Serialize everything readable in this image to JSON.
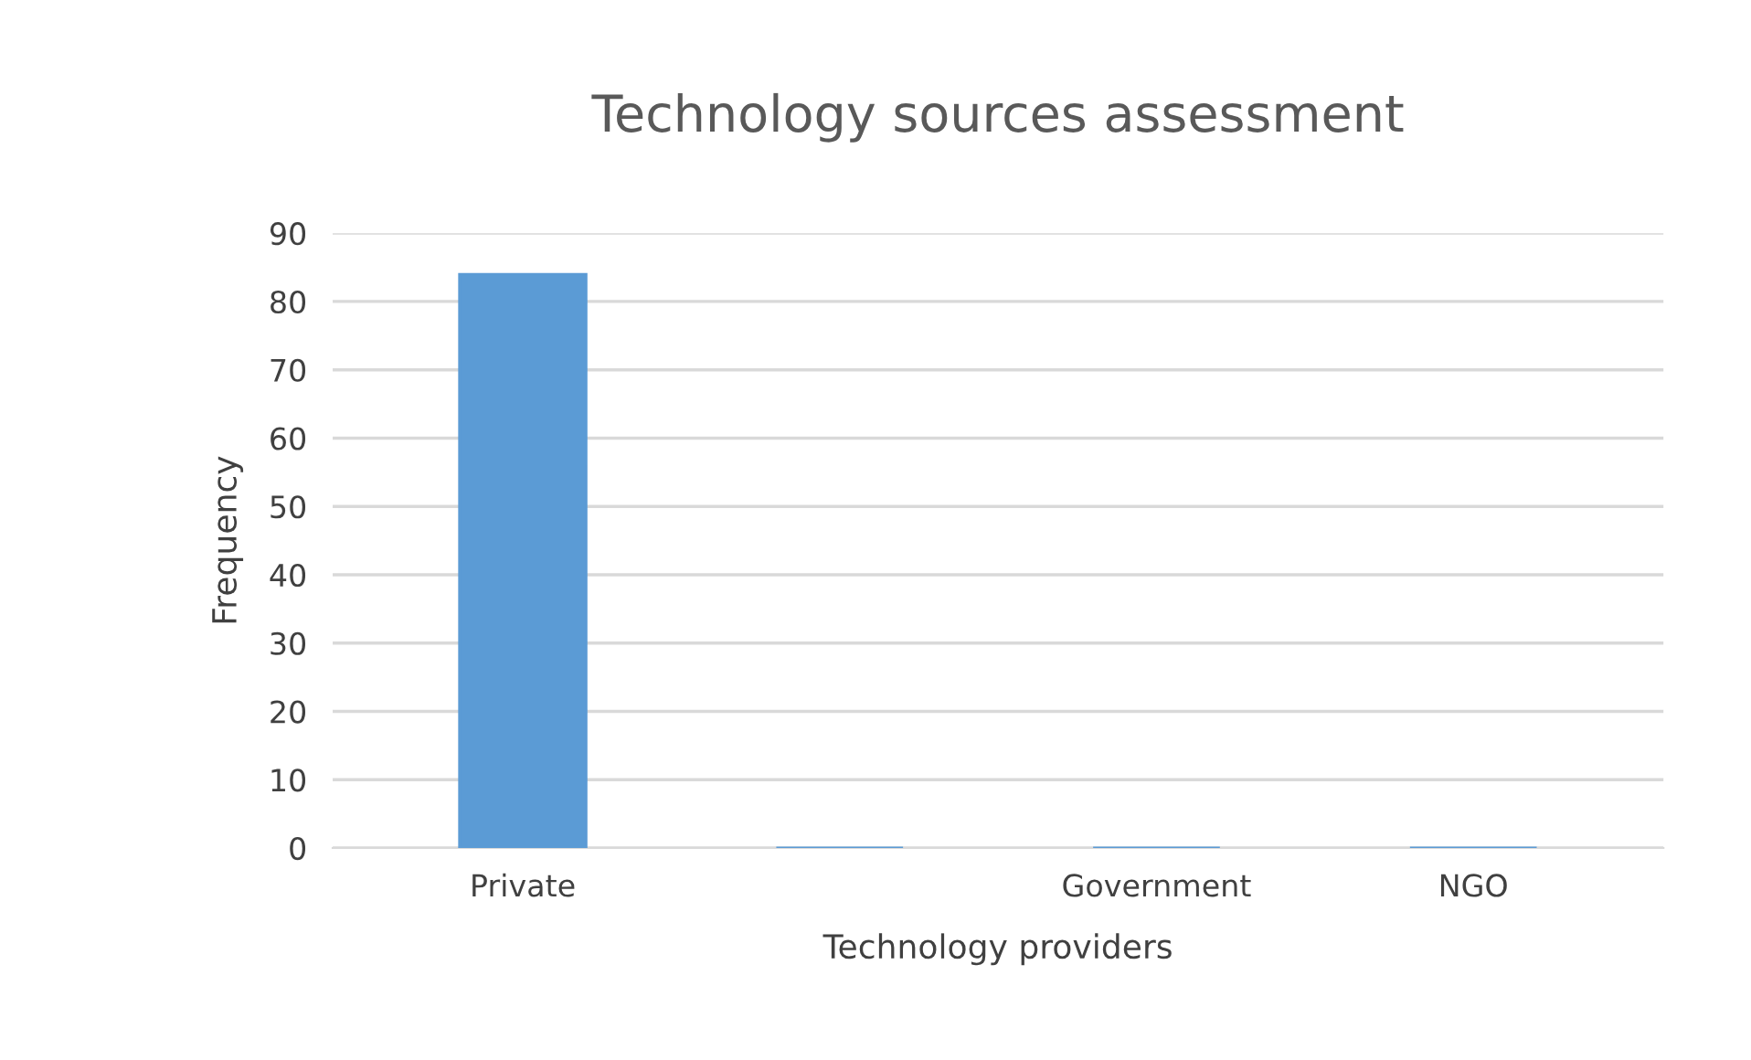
{
  "chart_data": {
    "type": "bar",
    "title": "Technology sources assessment",
    "xlabel": "Technology providers",
    "ylabel": "Frequency",
    "categories": [
      "Private",
      null,
      "Government",
      "NGO"
    ],
    "values": [
      84,
      0,
      0,
      0
    ],
    "color": "#5b9bd5",
    "ylim": [
      0,
      90
    ],
    "yticks": [
      0,
      10,
      20,
      30,
      40,
      50,
      60,
      70,
      80,
      90
    ],
    "grid": "y"
  }
}
